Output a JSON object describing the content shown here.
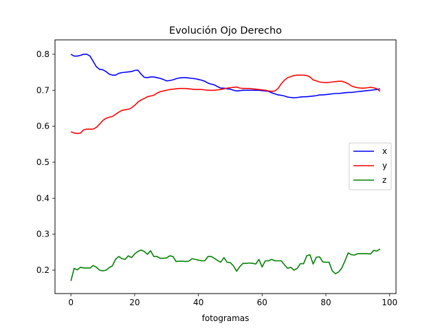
{
  "chart_data": {
    "type": "line",
    "title": "Evolución Ojo Derecho",
    "xlabel": "fotogramas",
    "ylabel": "",
    "xlim": [
      -5,
      102
    ],
    "ylim": [
      0.135,
      0.84
    ],
    "xticks": [
      0,
      20,
      40,
      60,
      80,
      100
    ],
    "yticks": [
      0.2,
      0.3,
      0.4,
      0.5,
      0.6,
      0.7,
      0.8
    ],
    "grid": false,
    "legend_position": "center-right",
    "series": [
      {
        "name": "x",
        "color": "#0000ff",
        "x": [
          0,
          1,
          2,
          3,
          4,
          5,
          6,
          7,
          8,
          9,
          10,
          11,
          12,
          13,
          14,
          15,
          16,
          17,
          18,
          19,
          20,
          21,
          22,
          23,
          24,
          25,
          26,
          27,
          28,
          29,
          30,
          31,
          32,
          33,
          34,
          35,
          36,
          37,
          38,
          39,
          40,
          41,
          42,
          43,
          44,
          45,
          46,
          47,
          48,
          49,
          50,
          51,
          52,
          53,
          54,
          55,
          56,
          57,
          58,
          59,
          60,
          61,
          62,
          63,
          64,
          65,
          66,
          67,
          68,
          69,
          70,
          71,
          72,
          73,
          74,
          75,
          76,
          77,
          78,
          79,
          80,
          81,
          82,
          83,
          84,
          85,
          86,
          87,
          88,
          89,
          90,
          91,
          92,
          93,
          94,
          95,
          96,
          97
        ],
        "values": [
          0.8,
          0.795,
          0.795,
          0.797,
          0.8,
          0.8,
          0.795,
          0.78,
          0.765,
          0.758,
          0.757,
          0.752,
          0.745,
          0.742,
          0.742,
          0.747,
          0.749,
          0.75,
          0.751,
          0.752,
          0.755,
          0.756,
          0.745,
          0.736,
          0.735,
          0.737,
          0.737,
          0.735,
          0.733,
          0.73,
          0.726,
          0.727,
          0.729,
          0.732,
          0.734,
          0.735,
          0.735,
          0.734,
          0.733,
          0.732,
          0.73,
          0.728,
          0.725,
          0.72,
          0.717,
          0.715,
          0.71,
          0.706,
          0.706,
          0.704,
          0.703,
          0.7,
          0.698,
          0.699,
          0.7,
          0.7,
          0.7,
          0.7,
          0.7,
          0.7,
          0.699,
          0.698,
          0.697,
          0.693,
          0.69,
          0.687,
          0.686,
          0.684,
          0.681,
          0.68,
          0.679,
          0.68,
          0.681,
          0.682,
          0.682,
          0.683,
          0.684,
          0.685,
          0.687,
          0.687,
          0.688,
          0.689,
          0.69,
          0.691,
          0.691,
          0.692,
          0.693,
          0.694,
          0.694,
          0.695,
          0.696,
          0.697,
          0.698,
          0.699,
          0.7,
          0.701,
          0.702,
          0.704
        ]
      },
      {
        "name": "y",
        "color": "#ff0000",
        "x": [
          0,
          1,
          2,
          3,
          4,
          5,
          6,
          7,
          8,
          9,
          10,
          11,
          12,
          13,
          14,
          15,
          16,
          17,
          18,
          19,
          20,
          21,
          22,
          23,
          24,
          25,
          26,
          27,
          28,
          29,
          30,
          31,
          32,
          33,
          34,
          35,
          36,
          37,
          38,
          39,
          40,
          41,
          42,
          43,
          44,
          45,
          46,
          47,
          48,
          49,
          50,
          51,
          52,
          53,
          54,
          55,
          56,
          57,
          58,
          59,
          60,
          61,
          62,
          63,
          64,
          65,
          66,
          67,
          68,
          69,
          70,
          71,
          72,
          73,
          74,
          75,
          76,
          77,
          78,
          79,
          80,
          81,
          82,
          83,
          84,
          85,
          86,
          87,
          88,
          89,
          90,
          91,
          92,
          93,
          94,
          95,
          96,
          97
        ],
        "values": [
          0.585,
          0.581,
          0.58,
          0.581,
          0.59,
          0.592,
          0.592,
          0.592,
          0.597,
          0.606,
          0.616,
          0.622,
          0.625,
          0.627,
          0.633,
          0.639,
          0.644,
          0.646,
          0.647,
          0.651,
          0.658,
          0.667,
          0.673,
          0.677,
          0.682,
          0.684,
          0.686,
          0.692,
          0.696,
          0.698,
          0.7,
          0.702,
          0.703,
          0.704,
          0.705,
          0.705,
          0.705,
          0.704,
          0.703,
          0.702,
          0.702,
          0.702,
          0.701,
          0.7,
          0.7,
          0.7,
          0.701,
          0.702,
          0.704,
          0.706,
          0.707,
          0.708,
          0.709,
          0.706,
          0.705,
          0.705,
          0.705,
          0.704,
          0.703,
          0.702,
          0.701,
          0.7,
          0.698,
          0.697,
          0.698,
          0.705,
          0.718,
          0.728,
          0.735,
          0.738,
          0.741,
          0.742,
          0.742,
          0.742,
          0.741,
          0.737,
          0.729,
          0.726,
          0.723,
          0.722,
          0.721,
          0.722,
          0.723,
          0.724,
          0.725,
          0.725,
          0.722,
          0.718,
          0.712,
          0.709,
          0.707,
          0.706,
          0.706,
          0.707,
          0.708,
          0.707,
          0.704,
          0.697
        ]
      },
      {
        "name": "z",
        "color": "#008000",
        "x": [
          0,
          1,
          2,
          3,
          4,
          5,
          6,
          7,
          8,
          9,
          10,
          11,
          12,
          13,
          14,
          15,
          16,
          17,
          18,
          19,
          20,
          21,
          22,
          23,
          24,
          25,
          26,
          27,
          28,
          29,
          30,
          31,
          32,
          33,
          34,
          35,
          36,
          37,
          38,
          39,
          40,
          41,
          42,
          43,
          44,
          45,
          46,
          47,
          48,
          49,
          50,
          51,
          52,
          53,
          54,
          55,
          56,
          57,
          58,
          59,
          60,
          61,
          62,
          63,
          64,
          65,
          66,
          67,
          68,
          69,
          70,
          71,
          72,
          73,
          74,
          75,
          76,
          77,
          78,
          79,
          80,
          81,
          82,
          83,
          84,
          85,
          86,
          87,
          88,
          89,
          90,
          91,
          92,
          93,
          94,
          95,
          96,
          97
        ],
        "values": [
          0.17,
          0.205,
          0.201,
          0.208,
          0.206,
          0.206,
          0.206,
          0.213,
          0.208,
          0.2,
          0.198,
          0.2,
          0.207,
          0.212,
          0.23,
          0.238,
          0.232,
          0.23,
          0.24,
          0.235,
          0.245,
          0.252,
          0.256,
          0.252,
          0.244,
          0.254,
          0.238,
          0.238,
          0.233,
          0.233,
          0.234,
          0.24,
          0.238,
          0.224,
          0.225,
          0.225,
          0.224,
          0.225,
          0.232,
          0.23,
          0.228,
          0.226,
          0.226,
          0.238,
          0.238,
          0.233,
          0.227,
          0.222,
          0.235,
          0.222,
          0.221,
          0.212,
          0.197,
          0.21,
          0.219,
          0.219,
          0.22,
          0.219,
          0.217,
          0.23,
          0.209,
          0.226,
          0.226,
          0.23,
          0.226,
          0.226,
          0.226,
          0.215,
          0.205,
          0.208,
          0.2,
          0.205,
          0.218,
          0.218,
          0.24,
          0.243,
          0.217,
          0.236,
          0.237,
          0.223,
          0.222,
          0.222,
          0.198,
          0.19,
          0.195,
          0.206,
          0.226,
          0.248,
          0.243,
          0.242,
          0.246,
          0.246,
          0.246,
          0.246,
          0.245,
          0.255,
          0.253,
          0.259
        ]
      }
    ]
  }
}
